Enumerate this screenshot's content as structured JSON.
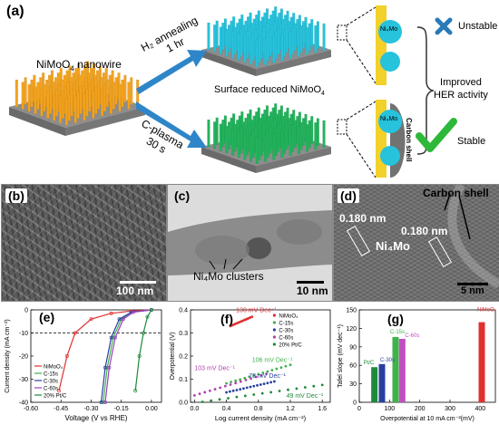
{
  "panel_a": {
    "label": "(a)",
    "nanowire_label": "NiMoO",
    "nanowire_sub": "4",
    "nanowire_suffix": " nanowire",
    "arrow_top_line1": "H₂ annealing",
    "arrow_top_line2": "1 hr",
    "arrow_bottom_line1": "C-plasma",
    "arrow_bottom_line2": "30 s",
    "surface_label": "Surface reduced NiMoO",
    "surface_sub": "4",
    "particle_top": "Ni₄Mo",
    "particle_bottom": "Ni₄Mo",
    "carbon_shell_vertical": "Carbon shell",
    "unstable": "Unstable",
    "improved_line1": "Improved",
    "improved_line2": "HER activity",
    "stable": "Stable",
    "colors": {
      "orange": "#f3a21c",
      "cyan": "#27c2dc",
      "green": "#22b35c",
      "yellow": "#f2d12a",
      "arrow": "#2e86c8",
      "check": "#2eb83a",
      "cross": "#2a7ab8"
    }
  },
  "panel_b": {
    "label": "(b)",
    "scale": "100 nm"
  },
  "panel_c": {
    "label": "(c)",
    "scale": "10 nm",
    "annotation": "Ni₄Mo clusters"
  },
  "panel_d": {
    "label": "(d)",
    "carbon_shell": "Carbon shell",
    "d1": "0.180 nm",
    "d2": "0.180 nm",
    "phase": "Ni₄Mo",
    "scale": "5 nm"
  },
  "panel_e": {
    "label": "(e)"
  },
  "panel_f": {
    "label": "(f)",
    "annotations": [
      "130 mV Dec⁻¹",
      "103 mV Dec⁻¹",
      "106 mV Dec⁻¹",
      "78 mV Dec⁻¹",
      "49 mV Dec⁻¹"
    ]
  },
  "panel_g": {
    "label": "(g)"
  },
  "chart_data": [
    {
      "type": "line",
      "xlabel": "Voltage (V vs RHE)",
      "ylabel": "Current density (mA cm⁻²)",
      "xlim": [
        -0.6,
        0.05
      ],
      "ylim": [
        -40,
        0
      ],
      "xticks": [
        "-0.60",
        "-0.45",
        "-0.30",
        "-0.15",
        "0.00"
      ],
      "yticks": [
        "0",
        "-10",
        "-20",
        "-30",
        "-40"
      ],
      "series": [
        {
          "name": "NiMoO₄",
          "color": "#e03030",
          "x": [
            0.0,
            -0.1,
            -0.2,
            -0.3,
            -0.38,
            -0.42,
            -0.46
          ],
          "y": [
            0,
            -0.5,
            -1.5,
            -4,
            -10,
            -20,
            -35
          ]
        },
        {
          "name": "C-15s",
          "color": "#3fb24a",
          "x": [
            0.0,
            -0.1,
            -0.15,
            -0.19,
            -0.22,
            -0.24
          ],
          "y": [
            0,
            -1,
            -4,
            -12,
            -25,
            -40
          ]
        },
        {
          "name": "C-30s",
          "color": "#2a3fa0",
          "x": [
            0.0,
            -0.1,
            -0.16,
            -0.2,
            -0.23,
            -0.25
          ],
          "y": [
            0,
            -1,
            -4,
            -12,
            -25,
            -40
          ]
        },
        {
          "name": "C-60s",
          "color": "#9b3ec0",
          "x": [
            0.0,
            -0.09,
            -0.14,
            -0.18,
            -0.21,
            -0.23
          ],
          "y": [
            0,
            -1,
            -4,
            -12,
            -25,
            -40
          ]
        },
        {
          "name": "20% Pt/C",
          "color": "#1d8a3a",
          "x": [
            0.0,
            -0.02,
            -0.04,
            -0.06,
            -0.08
          ],
          "y": [
            0,
            -3,
            -10,
            -20,
            -35
          ]
        }
      ]
    },
    {
      "type": "scatter",
      "xlabel": "Log current density (mA cm⁻²)",
      "ylabel": "Overpotential (V)",
      "xlim": [
        -0.05,
        1.7
      ],
      "ylim": [
        0.0,
        0.4
      ],
      "xticks": [
        "0.0",
        "0.4",
        "0.8",
        "1.2",
        "1.6"
      ],
      "yticks": [
        "0.0",
        "0.1",
        "0.2",
        "0.3",
        "0.4"
      ],
      "series": [
        {
          "name": "NiMoO₄",
          "color": "#e03030",
          "x": [
            0.45,
            0.72
          ],
          "y": [
            0.33,
            0.37
          ]
        },
        {
          "name": "C-15s",
          "color": "#3fb24a",
          "x": [
            0.4,
            1.2
          ],
          "y": [
            0.082,
            0.162
          ]
        },
        {
          "name": "C-30s",
          "color": "#2a3fa0",
          "x": [
            0.4,
            1.0
          ],
          "y": [
            0.043,
            0.09
          ]
        },
        {
          "name": "C-60s",
          "color": "#b03fb0",
          "x": [
            0.0,
            0.9
          ],
          "y": [
            0.03,
            0.123
          ]
        },
        {
          "name": "20% Pt/C",
          "color": "#1d8a3a",
          "x": [
            0.1,
            1.6
          ],
          "y": [
            0.002,
            0.075
          ]
        }
      ]
    },
    {
      "type": "bar",
      "xlabel": "Overpotential at 10 mA cm⁻²(mV)",
      "ylabel": "Tafel slope (mV dec⁻¹)",
      "xlim": [
        0,
        450
      ],
      "ylim": [
        0,
        150
      ],
      "xticks": [
        "0",
        "100",
        "200",
        "300",
        "400"
      ],
      "yticks": [
        "0",
        "30",
        "60",
        "90",
        "120",
        "150"
      ],
      "bars": [
        {
          "name": "Pt/C",
          "x": 50,
          "value": 57,
          "color": "#1d8a3a"
        },
        {
          "name": "C-30s",
          "x": 75,
          "value": 62,
          "color": "#2a3fa0"
        },
        {
          "name": "C-15s",
          "x": 120,
          "value": 106,
          "color": "#3fb24a"
        },
        {
          "name": "C-60s",
          "x": 142,
          "value": 103,
          "color": "#c04fc0"
        },
        {
          "name": "NiMoO₄",
          "x": 405,
          "value": 130,
          "color": "#e03030"
        }
      ]
    }
  ]
}
